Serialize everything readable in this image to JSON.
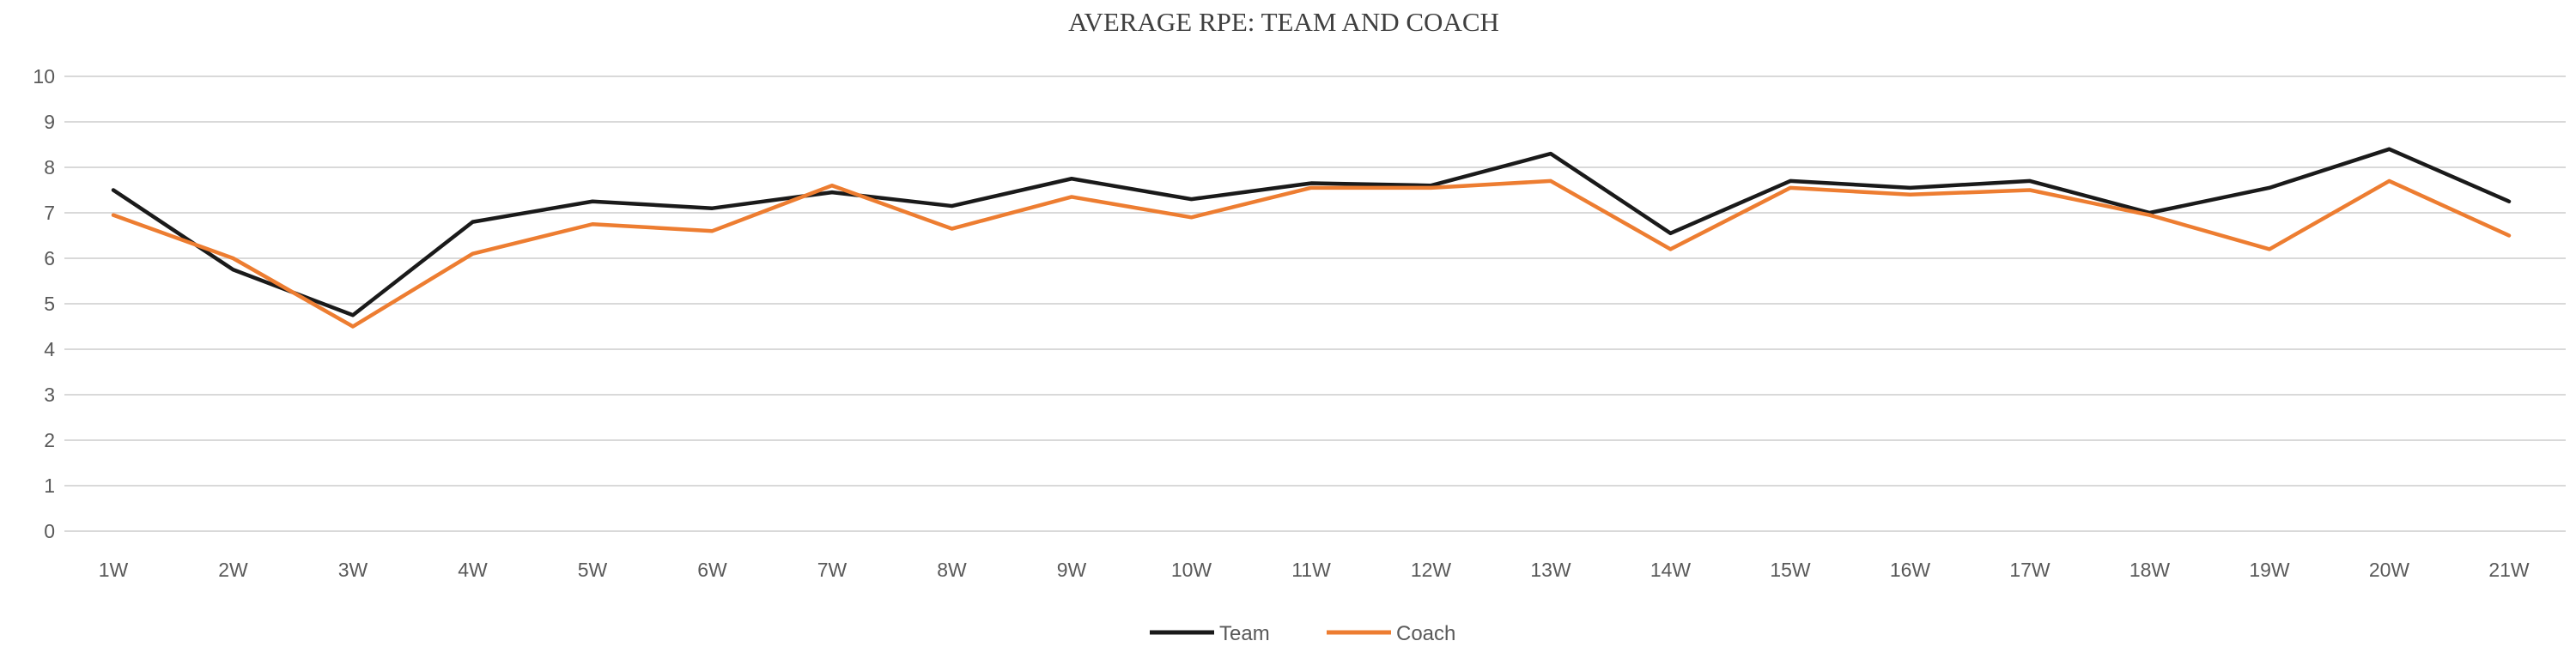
{
  "chart_data": {
    "type": "line",
    "title": "AVERAGE RPE: TEAM AND COACH",
    "categories": [
      "1W",
      "2W",
      "3W",
      "4W",
      "5W",
      "6W",
      "7W",
      "8W",
      "9W",
      "10W",
      "11W",
      "12W",
      "13W",
      "14W",
      "15W",
      "16W",
      "17W",
      "18W",
      "19W",
      "20W",
      "21W"
    ],
    "series": [
      {
        "name": "Team",
        "color": "#1a1a1a",
        "values": [
          7.5,
          5.75,
          4.75,
          6.8,
          7.25,
          7.1,
          7.45,
          7.15,
          7.75,
          7.3,
          7.65,
          7.6,
          8.3,
          6.55,
          7.7,
          7.55,
          7.7,
          7.0,
          7.55,
          8.4,
          7.25
        ]
      },
      {
        "name": "Coach",
        "color": "#ED7D31",
        "values": [
          6.95,
          6.0,
          4.5,
          6.1,
          6.75,
          6.6,
          7.6,
          6.65,
          7.35,
          6.9,
          7.55,
          7.55,
          7.7,
          6.2,
          7.55,
          7.4,
          7.5,
          6.95,
          6.2,
          7.7,
          6.5
        ]
      }
    ],
    "xlabel": "",
    "ylabel": "",
    "ylim": [
      0,
      10
    ],
    "y_tick_step": 1,
    "grid": "horizontal-only",
    "legend_position": "bottom-center"
  },
  "styles": {
    "gridline_color": "#d9d9d9",
    "axis_label_color": "#595959",
    "title_color": "#3f3f3f",
    "background_color": "#ffffff"
  }
}
